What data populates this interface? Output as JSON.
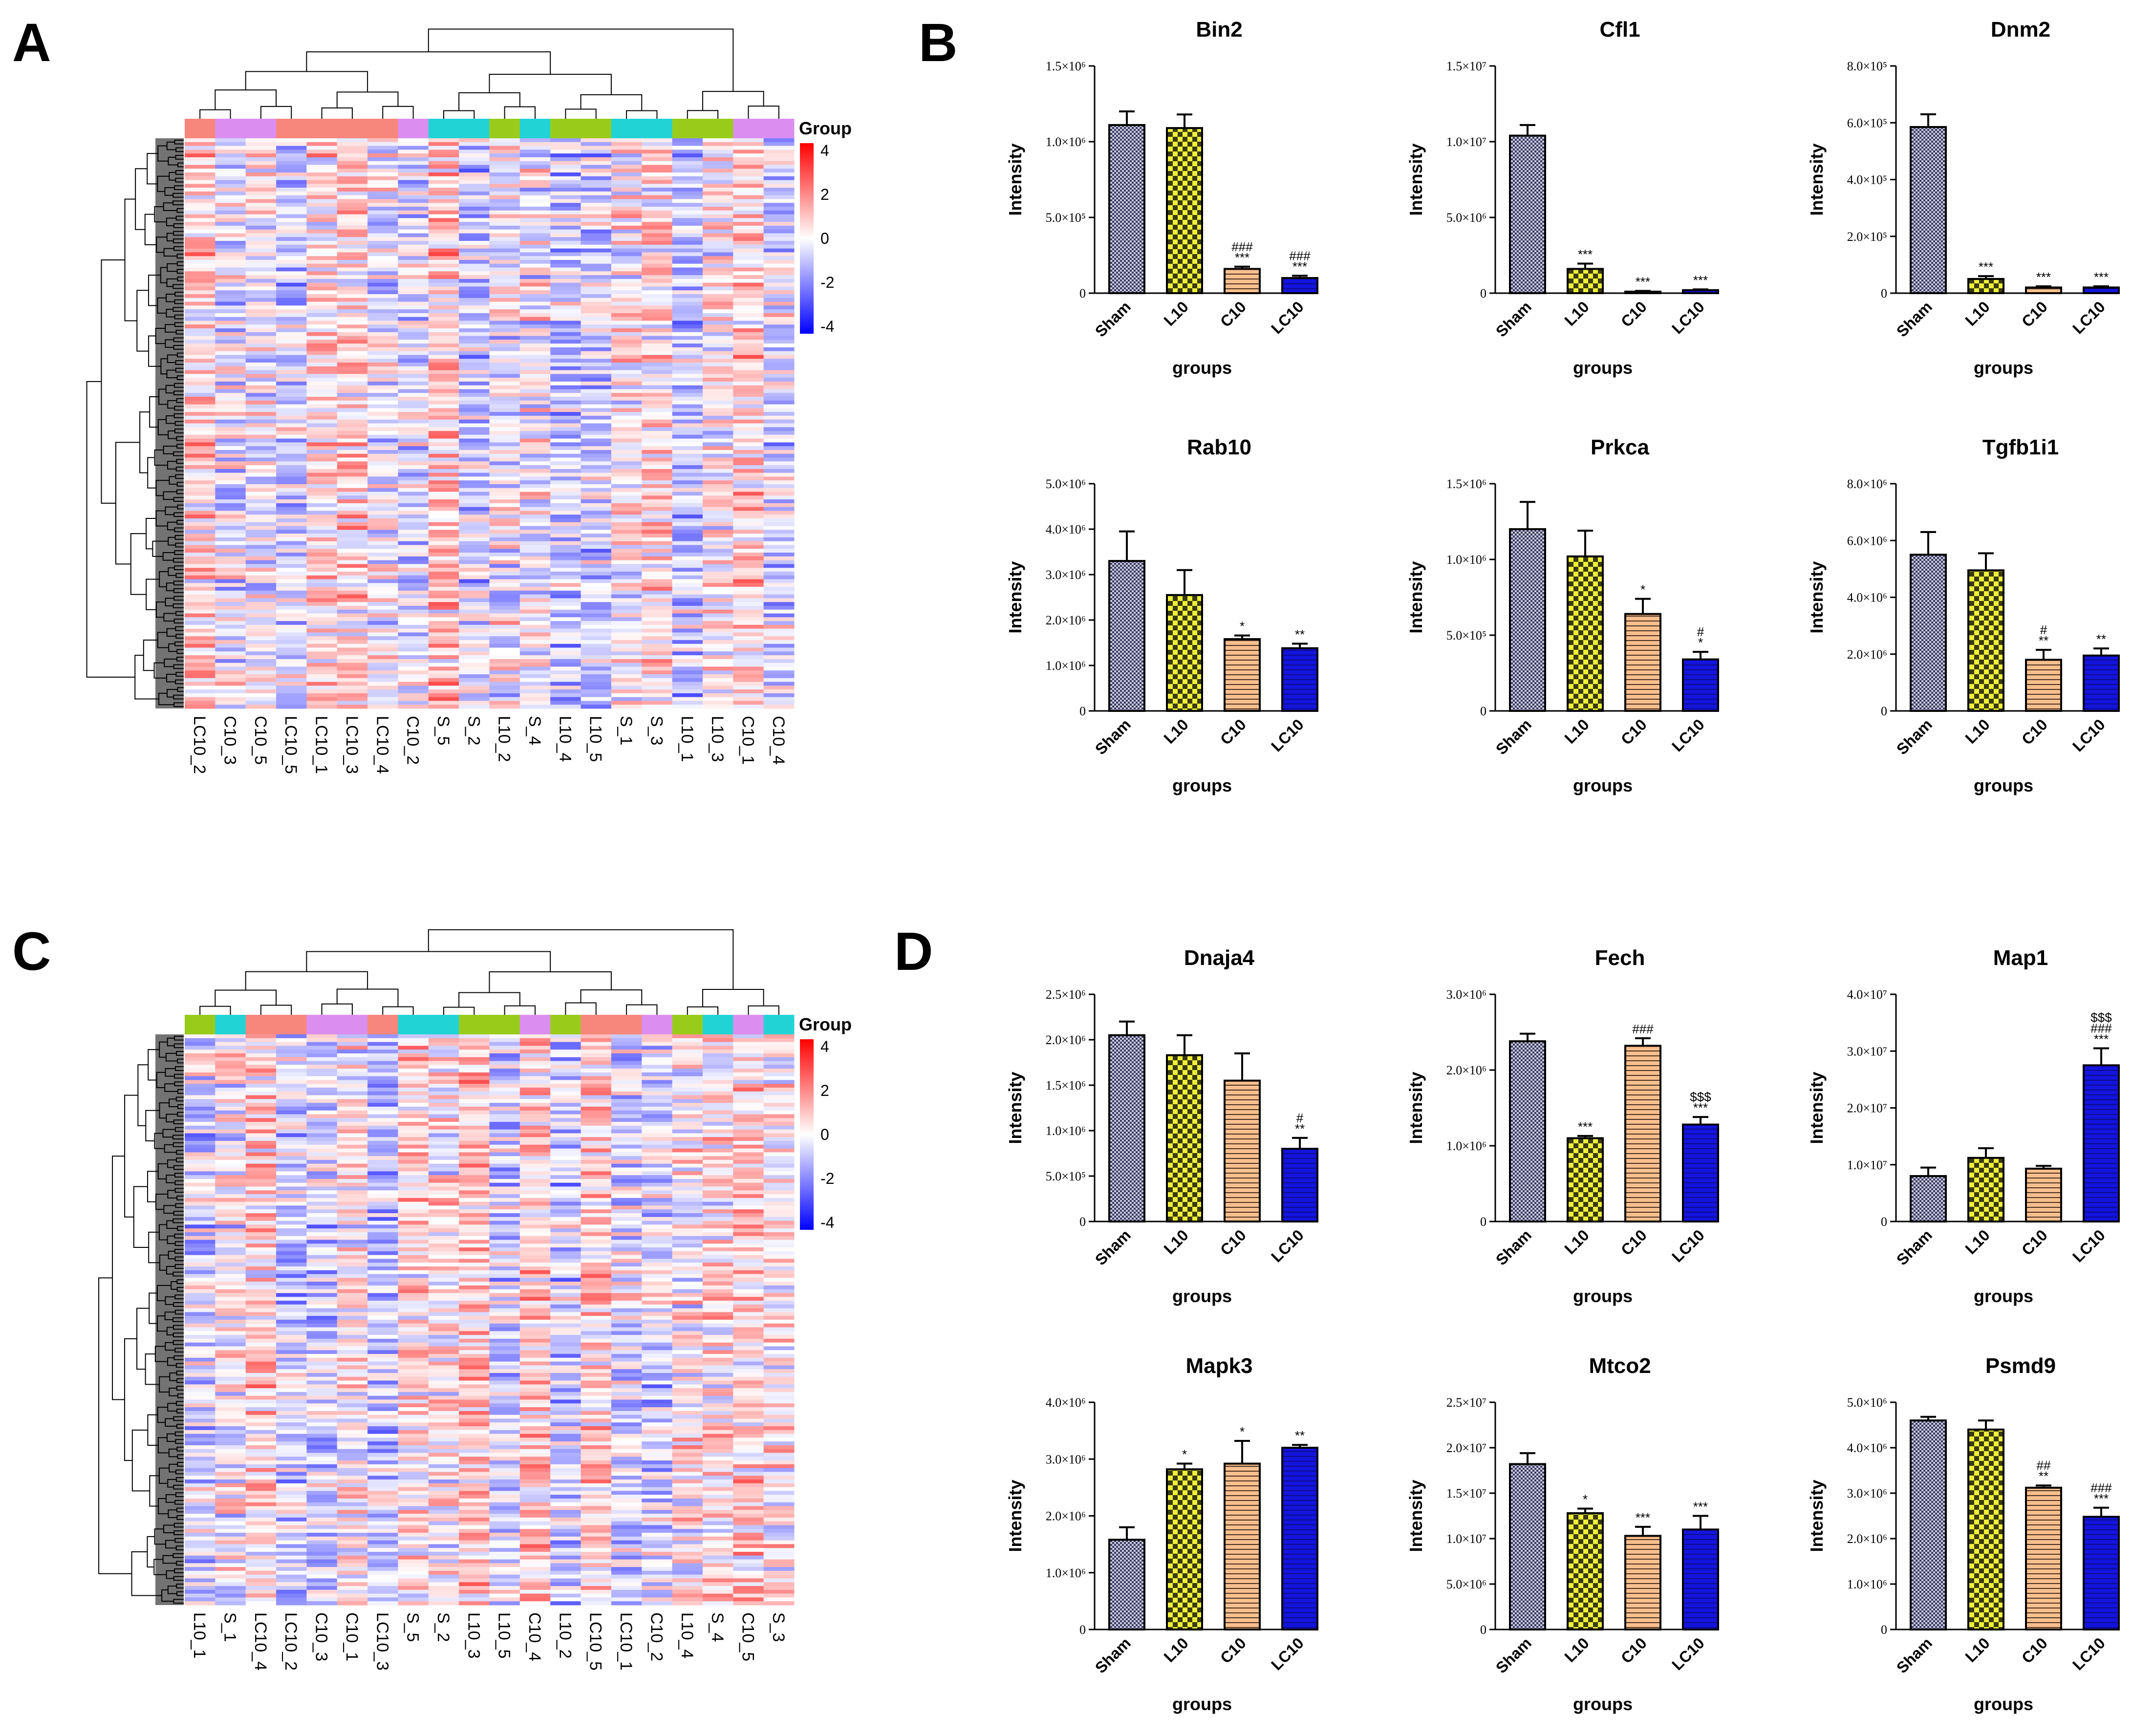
{
  "panels": [
    "A",
    "B",
    "C",
    "D"
  ],
  "colors": {
    "Sham": "#55557a",
    "L10": "#e4e633",
    "C10": "#f5b27c",
    "LC10": "#1f1fd8",
    "group_LC10": "#f7877c",
    "group_C10": "#dc8ef0",
    "group_S": "#22d3d6",
    "group_L10": "#99cc1a"
  },
  "heatmaps": [
    {
      "panel": "A",
      "legend_title": "Group",
      "scale_ticks": [
        "4",
        "2",
        "0",
        "-2",
        "-4"
      ],
      "columns": [
        "LC10_2",
        "C10_3",
        "C10_5",
        "LC10_5",
        "LC10_1",
        "LC10_3",
        "LC10_4",
        "C10_2",
        "S_5",
        "S_2",
        "L10_2",
        "S_4",
        "L10_4",
        "L10_5",
        "S_1",
        "S_3",
        "L10_1",
        "L10_3",
        "C10_1",
        "C10_4"
      ],
      "groups": [
        "LC10",
        "C10",
        "C10",
        "LC10",
        "LC10",
        "LC10",
        "LC10",
        "C10",
        "S",
        "S",
        "L10",
        "S",
        "L10",
        "L10",
        "S",
        "S",
        "L10",
        "L10",
        "C10",
        "C10"
      ]
    },
    {
      "panel": "C",
      "legend_title": "Group",
      "scale_ticks": [
        "4",
        "2",
        "0",
        "-2",
        "-4"
      ],
      "columns": [
        "L10_1",
        "S_1",
        "LC10_4",
        "LC10_2",
        "C10_3",
        "C10_1",
        "LC10_3",
        "S_5",
        "S_2",
        "L10_3",
        "L10_5",
        "C10_4",
        "L10_2",
        "LC10_5",
        "LC10_1",
        "C10_2",
        "L10_4",
        "S_4",
        "C10_5",
        "S_3"
      ],
      "groups": [
        "L10",
        "S",
        "LC10",
        "LC10",
        "C10",
        "C10",
        "LC10",
        "S",
        "S",
        "L10",
        "L10",
        "C10",
        "L10",
        "LC10",
        "LC10",
        "C10",
        "L10",
        "S",
        "C10",
        "S"
      ]
    }
  ],
  "chart_data": [
    {
      "type": "bar",
      "title": "Bin2",
      "panel": "B",
      "ylabel": "Intensity",
      "xlabel": "groups",
      "categories": [
        "Sham",
        "L10",
        "C10",
        "LC10"
      ],
      "values": [
        1.11,
        1.09,
        0.16,
        0.1
      ],
      "errors": [
        0.09,
        0.09,
        0.015,
        0.015
      ],
      "ylim": [
        0,
        1.5
      ],
      "ytick_values": [
        0,
        0.5,
        1.0,
        1.5
      ],
      "ytick_labels": [
        "0",
        "5.0×10⁵",
        "1.0×10⁶",
        "1.5×10⁶"
      ],
      "annotations": [
        "",
        "",
        "###\n***",
        "###\n***"
      ]
    },
    {
      "type": "bar",
      "title": "Cfl1",
      "panel": "B",
      "ylabel": "Intensity",
      "xlabel": "groups",
      "categories": [
        "Sham",
        "L10",
        "C10",
        "LC10"
      ],
      "values": [
        1.04,
        0.16,
        0.01,
        0.02
      ],
      "errors": [
        0.07,
        0.035,
        0.005,
        0.005
      ],
      "ylim": [
        0,
        1.5
      ],
      "ytick_values": [
        0,
        0.5,
        1.0,
        1.5
      ],
      "ytick_labels": [
        "0",
        "5.0×10⁶",
        "1.0×10⁷",
        "1.5×10⁷"
      ],
      "annotations": [
        "",
        "***",
        "***",
        "***"
      ]
    },
    {
      "type": "bar",
      "title": "Dnm2",
      "panel": "B",
      "ylabel": "Intensity",
      "xlabel": "groups",
      "categories": [
        "Sham",
        "L10",
        "C10",
        "LC10"
      ],
      "values": [
        5.85,
        0.5,
        0.2,
        0.2
      ],
      "errors": [
        0.45,
        0.1,
        0.04,
        0.04
      ],
      "ylim": [
        0,
        8
      ],
      "ytick_values": [
        0,
        2,
        4,
        6,
        8
      ],
      "ytick_labels": [
        "0",
        "2.0×10⁵",
        "4.0×10⁵",
        "6.0×10⁵",
        "8.0×10⁵"
      ],
      "annotations": [
        "",
        "***",
        "***",
        "***"
      ]
    },
    {
      "type": "bar",
      "title": "Rab10",
      "panel": "B",
      "ylabel": "Intensity",
      "xlabel": "groups",
      "categories": [
        "Sham",
        "L10",
        "C10",
        "LC10"
      ],
      "values": [
        3.3,
        2.55,
        1.58,
        1.38
      ],
      "errors": [
        0.65,
        0.55,
        0.08,
        0.1
      ],
      "ylim": [
        0,
        5
      ],
      "ytick_values": [
        0,
        1,
        2,
        3,
        4,
        5
      ],
      "ytick_labels": [
        "0",
        "1.0×10⁶",
        "2.0×10⁶",
        "3.0×10⁶",
        "4.0×10⁶",
        "5.0×10⁶"
      ],
      "annotations": [
        "",
        "",
        "*",
        "**"
      ]
    },
    {
      "type": "bar",
      "title": "Prkca",
      "panel": "B",
      "ylabel": "Intensity",
      "xlabel": "groups",
      "categories": [
        "Sham",
        "L10",
        "C10",
        "LC10"
      ],
      "values": [
        1.2,
        1.02,
        0.64,
        0.34
      ],
      "errors": [
        0.18,
        0.17,
        0.1,
        0.05
      ],
      "ylim": [
        0,
        1.5
      ],
      "ytick_values": [
        0,
        0.5,
        1.0,
        1.5
      ],
      "ytick_labels": [
        "0",
        "5.0×10⁵",
        "1.0×10⁶",
        "1.5×10⁶"
      ],
      "annotations": [
        "",
        "",
        "*",
        "#\n*"
      ]
    },
    {
      "type": "bar",
      "title": "Tgfb1i1",
      "panel": "B",
      "ylabel": "Intensity",
      "xlabel": "groups",
      "categories": [
        "Sham",
        "L10",
        "C10",
        "LC10"
      ],
      "values": [
        5.5,
        4.95,
        1.8,
        1.95
      ],
      "errors": [
        0.8,
        0.6,
        0.35,
        0.25
      ],
      "ylim": [
        0,
        8
      ],
      "ytick_values": [
        0,
        2,
        4,
        6,
        8
      ],
      "ytick_labels": [
        "0",
        "2.0×10⁶",
        "4.0×10⁶",
        "6.0×10⁶",
        "8.0×10⁶"
      ],
      "annotations": [
        "",
        "",
        "#\n**",
        "**"
      ]
    },
    {
      "type": "bar",
      "title": "Dnaja4",
      "panel": "D",
      "ylabel": "Intensity",
      "xlabel": "groups",
      "categories": [
        "Sham",
        "L10",
        "C10",
        "LC10"
      ],
      "values": [
        2.05,
        1.83,
        1.55,
        0.8
      ],
      "errors": [
        0.15,
        0.22,
        0.3,
        0.12
      ],
      "ylim": [
        0,
        2.5
      ],
      "ytick_values": [
        0,
        0.5,
        1.0,
        1.5,
        2.0,
        2.5
      ],
      "ytick_labels": [
        "0",
        "5.0×10⁵",
        "1.0×10⁶",
        "1.5×10⁶",
        "2.0×10⁶",
        "2.5×10⁶"
      ],
      "annotations": [
        "",
        "",
        "",
        "#\n**"
      ]
    },
    {
      "type": "bar",
      "title": "Fech",
      "panel": "D",
      "ylabel": "Intensity",
      "xlabel": "groups",
      "categories": [
        "Sham",
        "L10",
        "C10",
        "LC10"
      ],
      "values": [
        2.38,
        1.1,
        2.32,
        1.28
      ],
      "errors": [
        0.1,
        0.03,
        0.1,
        0.1
      ],
      "ylim": [
        0,
        3
      ],
      "ytick_values": [
        0,
        1,
        2,
        3
      ],
      "ytick_labels": [
        "0",
        "1.0×10⁶",
        "2.0×10⁶",
        "3.0×10⁶"
      ],
      "annotations": [
        "",
        "***",
        "###",
        "$$$\n***"
      ]
    },
    {
      "type": "bar",
      "title": "Map1",
      "panel": "D",
      "ylabel": "Intensity",
      "xlabel": "groups",
      "categories": [
        "Sham",
        "L10",
        "C10",
        "LC10"
      ],
      "values": [
        0.8,
        1.12,
        0.93,
        2.75
      ],
      "errors": [
        0.15,
        0.17,
        0.05,
        0.3
      ],
      "ylim": [
        0,
        4
      ],
      "ytick_values": [
        0,
        1,
        2,
        3,
        4
      ],
      "ytick_labels": [
        "0",
        "1.0×10⁷",
        "2.0×10⁷",
        "3.0×10⁷",
        "4.0×10⁷"
      ],
      "annotations": [
        "",
        "",
        "",
        "$$$\n###\n***"
      ]
    },
    {
      "type": "bar",
      "title": "Mapk3",
      "panel": "D",
      "ylabel": "Intensity",
      "xlabel": "groups",
      "categories": [
        "Sham",
        "L10",
        "C10",
        "LC10"
      ],
      "values": [
        1.58,
        2.82,
        2.92,
        3.2
      ],
      "errors": [
        0.22,
        0.1,
        0.4,
        0.05
      ],
      "ylim": [
        0,
        4
      ],
      "ytick_values": [
        0,
        1,
        2,
        3,
        4
      ],
      "ytick_labels": [
        "0",
        "1.0×10⁶",
        "2.0×10⁶",
        "3.0×10⁶",
        "4.0×10⁶"
      ],
      "annotations": [
        "",
        "*",
        "*",
        "**"
      ]
    },
    {
      "type": "bar",
      "title": "Mtco2",
      "panel": "D",
      "ylabel": "Intensity",
      "xlabel": "groups",
      "categories": [
        "Sham",
        "L10",
        "C10",
        "LC10"
      ],
      "values": [
        1.82,
        1.28,
        1.03,
        1.1
      ],
      "errors": [
        0.12,
        0.05,
        0.1,
        0.15
      ],
      "ylim": [
        0,
        2.5
      ],
      "ytick_values": [
        0,
        0.5,
        1.0,
        1.5,
        2.0,
        2.5
      ],
      "ytick_labels": [
        "0",
        "5.0×10⁶",
        "1.0×10⁷",
        "1.5×10⁷",
        "2.0×10⁷",
        "2.5×10⁷"
      ],
      "annotations": [
        "",
        "*",
        "***",
        "***"
      ]
    },
    {
      "type": "bar",
      "title": "Psmd9",
      "panel": "D",
      "ylabel": "Intensity",
      "xlabel": "groups",
      "categories": [
        "Sham",
        "L10",
        "C10",
        "LC10"
      ],
      "values": [
        4.6,
        4.4,
        3.12,
        2.48
      ],
      "errors": [
        0.08,
        0.2,
        0.05,
        0.2
      ],
      "ylim": [
        0,
        5
      ],
      "ytick_values": [
        0,
        1,
        2,
        3,
        4,
        5
      ],
      "ytick_labels": [
        "0",
        "1.0×10⁶",
        "2.0×10⁶",
        "3.0×10⁶",
        "4.0×10⁶",
        "5.0×10⁶"
      ],
      "annotations": [
        "",
        "",
        "##\n**",
        "###\n***"
      ]
    }
  ]
}
